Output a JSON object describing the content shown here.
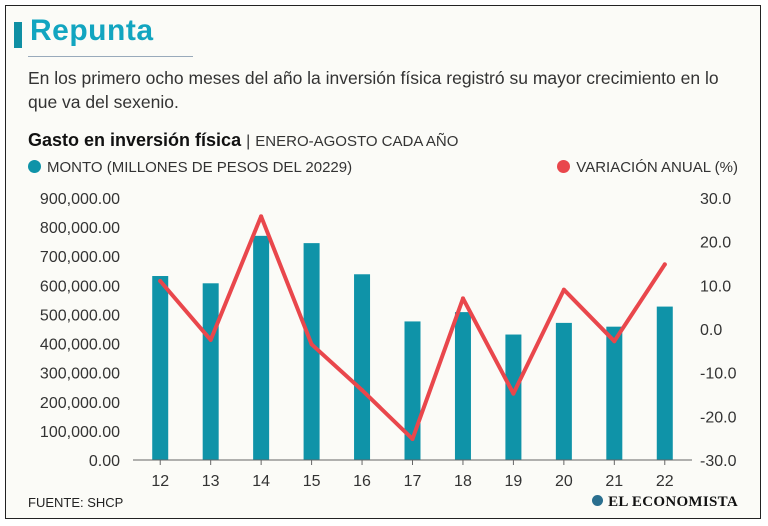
{
  "header": {
    "title": "Repunta",
    "subtitle": "En los primero ocho meses del año la inversión física registró su mayor crecimiento en lo que va del sexenio."
  },
  "chart_title": {
    "main": "Gasto en inversión física",
    "separator": "|",
    "sub": "ENERO-AGOSTO CADA AÑO"
  },
  "legend": {
    "bars": "MONTO (MILLONES DE PESOS DEL 20229)",
    "line": "VARIACIÓN ANUAL (%)"
  },
  "colors": {
    "bars": "#0f93a8",
    "line": "#e9474c",
    "title": "#12a5c0"
  },
  "footer": {
    "source": "FUENTE: SHCP",
    "brand": "EL ECONOMISTA"
  },
  "chart_data": {
    "type": "bar",
    "title": "Gasto en inversión física",
    "categories": [
      "12",
      "13",
      "14",
      "15",
      "16",
      "17",
      "18",
      "19",
      "20",
      "21",
      "22"
    ],
    "y_left": {
      "label": "MONTO (MILLONES DE PESOS DEL 20229)",
      "range": [
        0,
        900000
      ],
      "ticks": [
        "0.00",
        "100,000.00",
        "200,000.00",
        "300,000.00",
        "400,000.00",
        "500,000.00",
        "600,000.00",
        "700,000.00",
        "800,000.00",
        "900,000.00"
      ]
    },
    "y_right": {
      "label": "VARIACIÓN ANUAL (%)",
      "range": [
        -30,
        30
      ],
      "ticks": [
        "-30.0",
        "-20.0",
        "-10.0",
        "0.0",
        "10.0",
        "20.0",
        "30.0"
      ]
    },
    "series": [
      {
        "name": "MONTO (MILLONES DE PESOS DEL 20229)",
        "type": "bar",
        "axis": "left",
        "values": [
          632000,
          607000,
          770000,
          745000,
          638000,
          476000,
          508000,
          431000,
          471000,
          458000,
          527000
        ]
      },
      {
        "name": "VARIACIÓN ANUAL (%)",
        "type": "line",
        "axis": "right",
        "values": [
          11.0,
          -2.5,
          25.8,
          -3.5,
          -14.0,
          -25.2,
          7.0,
          -14.8,
          9.0,
          -2.8,
          14.8
        ]
      }
    ]
  }
}
